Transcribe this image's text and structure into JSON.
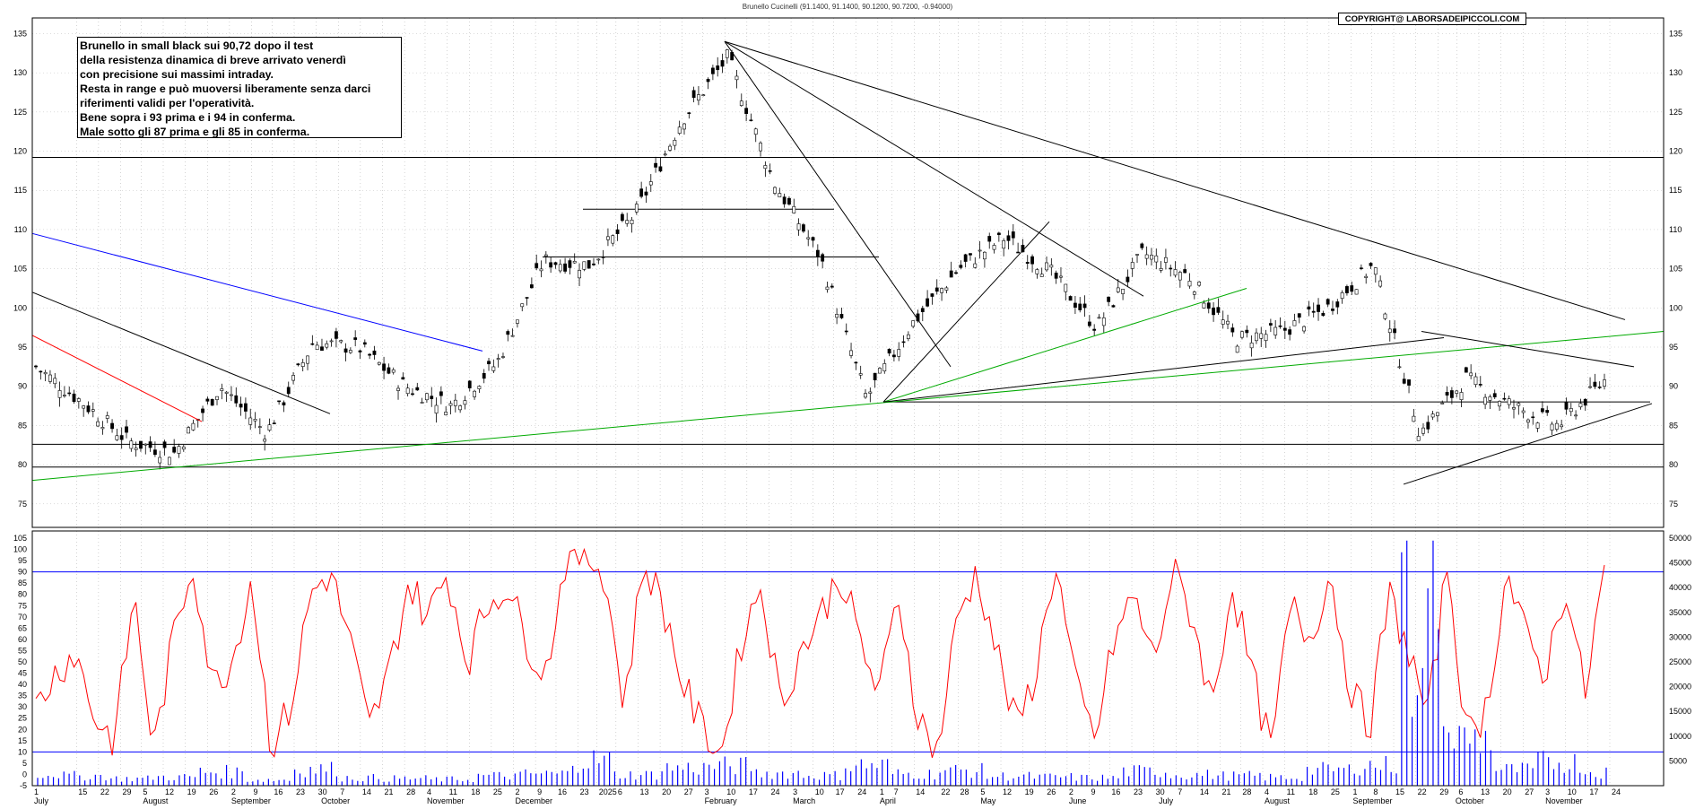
{
  "header": {
    "title": "Brunello Cucinelli (91.1400, 91.1400, 90.1200, 90.7200, -0.94000)",
    "copyright": "COPYRIGHT@ LABORSADEIPICCOLI.COM"
  },
  "annotation": {
    "lines": [
      "Brunello in small black sui 90,72 dopo il test",
      "della resistenza dinamica di breve arrivato venerdì",
      "con precisione sui massimi intraday.",
      "Resta in range e può muoversi liberamente senza darci",
      "riferimenti validi per l'operatività.",
      "Bene sopra i 93 prima e i 94 in conferma.",
      "Male sotto gli 87 prima e gli 85 in conferma."
    ]
  },
  "colors": {
    "price": "#000000",
    "oscillator": "#ff0000",
    "volume": "#0000ff",
    "support_resistance": "#000000",
    "blue_trendline": "#0000ff",
    "red_trendline": "#ff0000",
    "green_trendline": "#00aa00",
    "grid": "#aaaaaa"
  },
  "chart_data": [
    {
      "type": "candlestick",
      "title": "Brunello Cucinelli (91.1400, 91.1400, 90.1200, 90.7200, -0.94000)",
      "x": [
        "2024-07-01",
        "2024-07-15",
        "2024-08-01",
        "2024-08-19",
        "2024-09-02",
        "2024-09-16",
        "2024-10-01",
        "2024-10-14",
        "2024-11-01",
        "2024-11-18",
        "2024-12-02",
        "2024-12-16",
        "2025-01-02",
        "2025-01-20",
        "2025-02-03",
        "2025-02-14",
        "2025-03-03",
        "2025-03-24",
        "2025-04-07",
        "2025-04-22",
        "2025-05-05",
        "2025-05-19",
        "2025-06-02",
        "2025-06-16",
        "2025-07-01",
        "2025-07-14",
        "2025-08-01",
        "2025-08-18",
        "2025-09-01",
        "2025-09-22",
        "2025-09-29",
        "2025-10-13",
        "2025-11-03",
        "2025-11-17",
        "2025-11-28"
      ],
      "close": [
        92.5,
        88.0,
        83.0,
        81.5,
        90.0,
        84.0,
        95.5,
        95.0,
        90.0,
        87.5,
        93.0,
        106.0,
        105.5,
        112.0,
        124.0,
        132.0,
        116.0,
        106.5,
        88.5,
        98.0,
        105.0,
        109.0,
        104.5,
        97.5,
        107.0,
        104.0,
        96.0,
        97.0,
        100.0,
        105.5,
        84.0,
        91.0,
        87.5,
        85.0,
        90.72
      ],
      "ylim": [
        72,
        137
      ],
      "y_ticks": [
        75,
        80,
        85,
        90,
        95,
        100,
        105,
        110,
        115,
        120,
        125,
        130,
        135
      ],
      "horizontal_levels": [
        119.2,
        106.5,
        112.6,
        88.0,
        82.6,
        79.7
      ],
      "grid": true
    },
    {
      "type": "line",
      "x_labels": [
        {
          "text": "1",
          "pos": 0.0
        },
        {
          "text": "July",
          "pos": 0.0
        },
        {
          "text": "15",
          "pos": 0.028
        },
        {
          "text": "22",
          "pos": 0.042
        },
        {
          "text": "29",
          "pos": 0.056
        },
        {
          "text": "5",
          "pos": 0.069
        },
        {
          "text": "August",
          "pos": 0.069
        },
        {
          "text": "12",
          "pos": 0.083
        },
        {
          "text": "19",
          "pos": 0.097
        },
        {
          "text": "26",
          "pos": 0.111
        },
        {
          "text": "2",
          "pos": 0.125
        },
        {
          "text": "September",
          "pos": 0.125
        },
        {
          "text": "9",
          "pos": 0.139
        },
        {
          "text": "16",
          "pos": 0.152
        },
        {
          "text": "23",
          "pos": 0.166
        },
        {
          "text": "30",
          "pos": 0.18
        },
        {
          "text": "October",
          "pos": 0.182
        },
        {
          "text": "7",
          "pos": 0.194
        },
        {
          "text": "14",
          "pos": 0.208
        },
        {
          "text": "21",
          "pos": 0.222
        },
        {
          "text": "28",
          "pos": 0.236
        },
        {
          "text": "4",
          "pos": 0.249
        },
        {
          "text": "November",
          "pos": 0.249
        },
        {
          "text": "11",
          "pos": 0.263
        },
        {
          "text": "18",
          "pos": 0.277
        },
        {
          "text": "25",
          "pos": 0.291
        },
        {
          "text": "2",
          "pos": 0.305
        },
        {
          "text": "December",
          "pos": 0.305
        },
        {
          "text": "9",
          "pos": 0.319
        },
        {
          "text": "16",
          "pos": 0.332
        },
        {
          "text": "23",
          "pos": 0.346
        },
        {
          "text": "2025",
          "pos": 0.358
        },
        {
          "text": "6",
          "pos": 0.37
        },
        {
          "text": "13",
          "pos": 0.384
        },
        {
          "text": "20",
          "pos": 0.398
        },
        {
          "text": "27",
          "pos": 0.412
        },
        {
          "text": "3",
          "pos": 0.425
        },
        {
          "text": "February",
          "pos": 0.425
        },
        {
          "text": "10",
          "pos": 0.439
        },
        {
          "text": "17",
          "pos": 0.453
        },
        {
          "text": "24",
          "pos": 0.467
        },
        {
          "text": "3",
          "pos": 0.481
        },
        {
          "text": "March",
          "pos": 0.481
        },
        {
          "text": "10",
          "pos": 0.495
        },
        {
          "text": "17",
          "pos": 0.508
        },
        {
          "text": "24",
          "pos": 0.522
        },
        {
          "text": "1",
          "pos": 0.536
        },
        {
          "text": "April",
          "pos": 0.536
        },
        {
          "text": "7",
          "pos": 0.545
        },
        {
          "text": "14",
          "pos": 0.559
        },
        {
          "text": "22",
          "pos": 0.575
        },
        {
          "text": "28",
          "pos": 0.587
        },
        {
          "text": "5",
          "pos": 0.6
        },
        {
          "text": "May",
          "pos": 0.6
        },
        {
          "text": "12",
          "pos": 0.614
        },
        {
          "text": "19",
          "pos": 0.628
        },
        {
          "text": "26",
          "pos": 0.642
        },
        {
          "text": "2",
          "pos": 0.656
        },
        {
          "text": "June",
          "pos": 0.656
        },
        {
          "text": "9",
          "pos": 0.67
        },
        {
          "text": "16",
          "pos": 0.683
        },
        {
          "text": "23",
          "pos": 0.697
        },
        {
          "text": "30",
          "pos": 0.711
        },
        {
          "text": "July",
          "pos": 0.713
        },
        {
          "text": "7",
          "pos": 0.725
        },
        {
          "text": "14",
          "pos": 0.739
        },
        {
          "text": "21",
          "pos": 0.753
        },
        {
          "text": "28",
          "pos": 0.766
        },
        {
          "text": "4",
          "pos": 0.78
        },
        {
          "text": "August",
          "pos": 0.78
        },
        {
          "text": "11",
          "pos": 0.794
        },
        {
          "text": "18",
          "pos": 0.808
        },
        {
          "text": "25",
          "pos": 0.822
        },
        {
          "text": "1",
          "pos": 0.836
        },
        {
          "text": "September",
          "pos": 0.836
        },
        {
          "text": "8",
          "pos": 0.849
        },
        {
          "text": "15",
          "pos": 0.863
        },
        {
          "text": "22",
          "pos": 0.877
        },
        {
          "text": "29",
          "pos": 0.891
        },
        {
          "text": "6",
          "pos": 0.903
        },
        {
          "text": "October",
          "pos": 0.901
        },
        {
          "text": "13",
          "pos": 0.917
        },
        {
          "text": "20",
          "pos": 0.931
        },
        {
          "text": "27",
          "pos": 0.945
        },
        {
          "text": "3",
          "pos": 0.958
        },
        {
          "text": "November",
          "pos": 0.958
        },
        {
          "text": "10",
          "pos": 0.972
        },
        {
          "text": "17",
          "pos": 0.986
        },
        {
          "text": "24",
          "pos": 1.0
        }
      ],
      "series": [
        {
          "values": [
            30,
            45,
            55,
            25,
            15,
            80,
            10,
            60,
            95,
            40,
            50,
            88,
            12,
            30,
            80,
            90,
            60,
            20,
            45,
            85,
            70,
            90,
            50,
            75,
            85,
            60,
            45,
            95,
            98,
            90,
            30,
            95,
            75,
            40,
            20,
            10,
            60,
            85,
            30,
            55,
            70,
            90,
            60,
            35,
            80,
            25,
            10,
            70,
            90,
            55,
            20,
            45,
            95,
            40,
            15,
            60,
            80,
            50,
            90,
            70,
            30,
            85,
            45,
            10,
            75,
            60,
            90,
            40,
            20,
            80,
            55,
            25,
            95,
            15,
            30,
            90,
            60,
            45,
            85,
            35,
            92
          ]
        }
      ],
      "ylim": [
        -5,
        105
      ],
      "y_ticks": [
        -5,
        0,
        5,
        10,
        15,
        20,
        25,
        30,
        35,
        40,
        45,
        50,
        55,
        60,
        65,
        70,
        75,
        80,
        85,
        90,
        95,
        100,
        105
      ],
      "reference_levels": [
        90,
        10
      ]
    },
    {
      "type": "bar",
      "values": [
        3000,
        2500,
        1800,
        2200,
        3500,
        1500,
        4200,
        2000,
        1800,
        1600,
        2500,
        3000,
        6500,
        2800,
        4500,
        5000,
        3200,
        2600,
        5200,
        3000,
        3800,
        2400,
        2200,
        2000,
        3600,
        2800,
        2500,
        2100,
        4000,
        5200,
        48000,
        12000,
        4000,
        6000,
        3500
      ],
      "ylim": [
        0,
        50000
      ],
      "y_ticks": [
        0,
        5000,
        10000,
        15000,
        20000,
        25000,
        30000,
        35000,
        40000,
        45000,
        50000
      ],
      "y_tick_labels": [
        "5000",
        "10000",
        "15000",
        "20000",
        "25000",
        "30000",
        "35000",
        "40000",
        "45000",
        "50000"
      ]
    }
  ]
}
